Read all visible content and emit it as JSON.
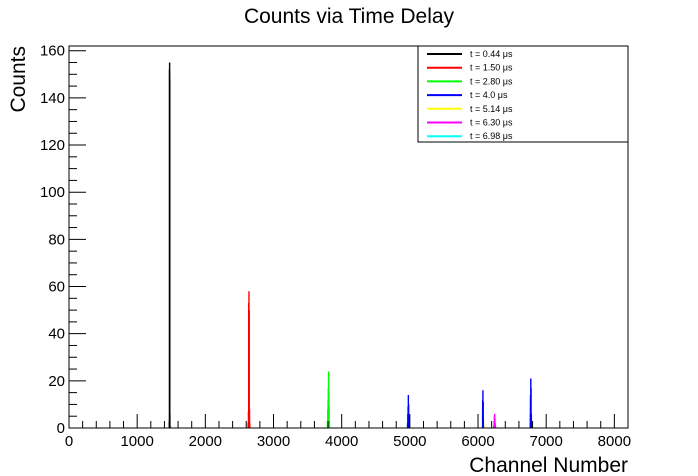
{
  "chart_data": {
    "type": "bar",
    "title": "Counts via Time Delay",
    "xlabel": "Channel Number",
    "ylabel": "Counts",
    "xlim": [
      0,
      8200
    ],
    "ylim": [
      0,
      162
    ],
    "x_ticks": [
      0,
      1000,
      2000,
      3000,
      4000,
      5000,
      6000,
      7000,
      8000
    ],
    "y_ticks": [
      0,
      20,
      40,
      60,
      80,
      100,
      120,
      140,
      160
    ],
    "grid": false,
    "legend_position": "top-right",
    "series": [
      {
        "name": "t = 0.44 μs",
        "color": "#000000",
        "channels": [
          1472,
          1474,
          1476,
          1478,
          1480,
          1482
        ],
        "counts": [
          3,
          152,
          155,
          148,
          6,
          1
        ]
      },
      {
        "name": "t = 1.50 μs",
        "color": "#ff0000",
        "channels": [
          2628,
          2632,
          2636,
          2640,
          2644,
          2648,
          2652
        ],
        "counts": [
          2,
          7,
          53,
          58,
          50,
          8,
          2
        ]
      },
      {
        "name": "t = 2.80 μs",
        "color": "#00ff00",
        "channels": [
          3792,
          3796,
          3800,
          3804,
          3808,
          3812,
          3816,
          3820
        ],
        "counts": [
          3,
          8,
          12,
          17,
          24,
          15,
          9,
          3
        ]
      },
      {
        "name": "t = 4.0 μs",
        "color": "#0000ff",
        "channels": [
          4966,
          4970,
          4974,
          4978,
          4982,
          4986,
          4990
        ],
        "counts": [
          2,
          6,
          9,
          14,
          10,
          5,
          2
        ]
      },
      {
        "name": "t = 5.14 μs",
        "color": "#ffff00",
        "channels": [
          6058,
          6062,
          6066,
          6070,
          6074,
          6078,
          6082,
          6086
        ],
        "counts": [
          2,
          5,
          8,
          9,
          7,
          5,
          3,
          1
        ]
      },
      {
        "name": "t = 6.30 μs",
        "color": "#ff00ff",
        "channels": [
          6232,
          6236,
          6240,
          6244,
          6248,
          6252,
          6256
        ],
        "counts": [
          1,
          3,
          5,
          6,
          4,
          2,
          1
        ]
      },
      {
        "name": "t = 6.98 μs",
        "color": "#00ffff",
        "channels": [
          6758,
          6762,
          6766,
          6770,
          6774,
          6778,
          6782
        ],
        "counts": [
          2,
          6,
          9,
          12,
          8,
          5,
          2
        ]
      },
      {
        "name": "",
        "color": "#0000ff",
        "channels": [
          6068,
          6072,
          6076,
          6078
        ],
        "counts": [
          12,
          16,
          11,
          4
        ]
      },
      {
        "name": "",
        "color": "#0000ff",
        "channels": [
          6770,
          6774,
          6778,
          6782
        ],
        "counts": [
          14,
          21,
          17,
          6
        ]
      }
    ]
  }
}
